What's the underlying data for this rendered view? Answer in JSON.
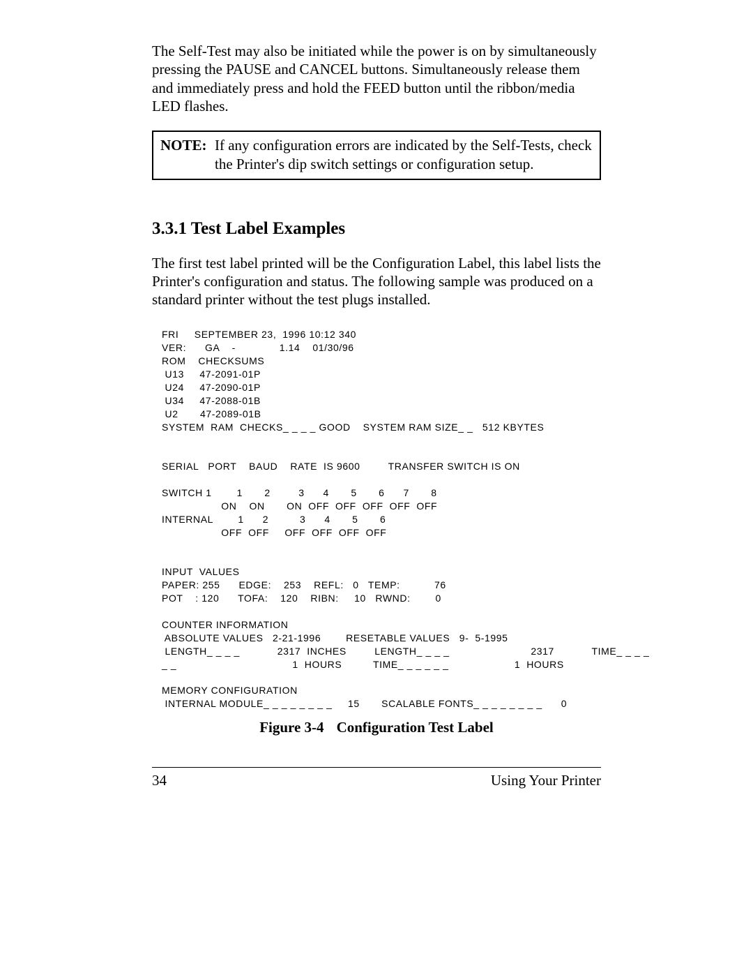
{
  "para1": "The Self-Test may also be initiated while the power is on by simultaneously pressing the PAUSE and CANCEL buttons. Simultaneously release them and immediately press and hold the FEED button until the ribbon/media LED flashes.",
  "note": {
    "label": "NOTE:",
    "text": "If any configuration errors are indicated by the Self-Tests, check the Printer's dip switch settings or configuration setup."
  },
  "subsection": "3.3.1 Test Label Examples",
  "para2": "The first test label printed will be the Configuration Label, this label  lists the Printer's configuration and status. The following sample was produced on a standard printer without the test plugs installed.",
  "label": {
    "l01": "FRI     SEPTEMBER 23,  1996 10:12 340",
    "l02": "VER:      GA    -              1.14    01/30/96",
    "l03": "ROM    CHECKSUMS",
    "l04": " U13     47-2091-01P",
    "l05": " U24     47-2090-01P",
    "l06": " U34     47-2088-01B",
    "l07": " U2       47-2089-01B",
    "l08": "SYSTEM  RAM  CHECKS_ _ _ _ GOOD    SYSTEM RAM SIZE_ _   512 KBYTES",
    "l09": "SERIAL   PORT    BAUD    RATE  IS 9600         TRANSFER SWITCH IS ON",
    "l10": "SWITCH 1        1       2         3      4       5       6      7       8",
    "l11": "                   ON    ON       ON  OFF  OFF  OFF  OFF  OFF",
    "l12": "INTERNAL        1      2          3      4       5       6",
    "l13": "                   OFF  OFF     OFF  OFF  OFF  OFF",
    "l14": "INPUT  VALUES",
    "l15": "PAPER: 255      EDGE:    253    REFL:   0   TEMP:           76",
    "l16": "POT    : 120      TOFA:    120    RIBN:     10   RWND:        0",
    "l17": "COUNTER INFORMATION",
    "l18": " ABSOLUTE VALUES   2-21-1996        RESETABLE VALUES   9-  5-1995",
    "l19": " LENGTH_ _ _ _            2317  INCHES         LENGTH_ _ _ _                          2317            TIME_ _ _ _",
    "l20": "_ _                                     1  HOURS          TIME_ _ _ _ _ _                     1  HOURS",
    "l21": "MEMORY CONFIGURATION",
    "l22": " INTERNAL MODULE_ _ _ _ _ _ _ _     15       SCALABLE FONTS_ _ _ _ _ _ _ _      0"
  },
  "caption": {
    "label": "Figure 3-4",
    "text": "Configuration Test Label"
  },
  "footer": {
    "page": "34",
    "section": "Using Your Printer"
  }
}
